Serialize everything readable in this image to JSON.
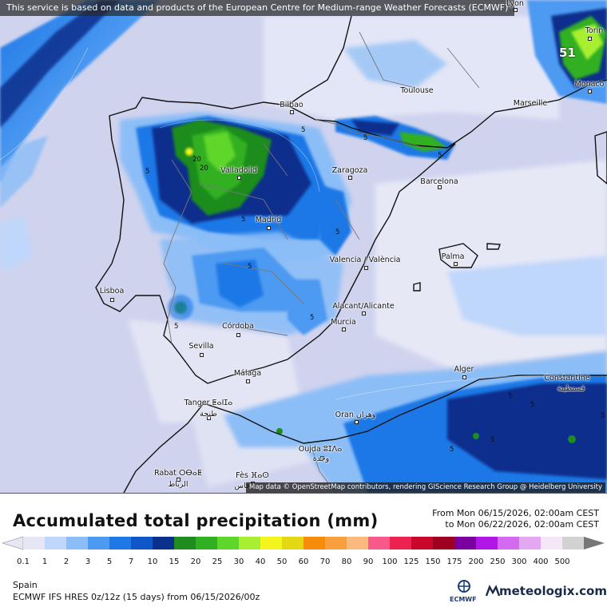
{
  "header": {
    "disclaimer": "This service is based on data and products of the European Centre for Medium-range Weather Forecasts (ECMWF)"
  },
  "map": {
    "attribution": "Map data © OpenStreetMap contributors, rendering GIScience Research Group @ Heidelberg University",
    "max_value_label": "51",
    "cities": [
      {
        "name": "Lyon"
      },
      {
        "name": "Torin"
      },
      {
        "name": "Monaco"
      },
      {
        "name": "Toulouse"
      },
      {
        "name": "Marseille"
      },
      {
        "name": "Bilbao"
      },
      {
        "name": "Zaragoza"
      },
      {
        "name": "Barcelona"
      },
      {
        "name": "Valladolid"
      },
      {
        "name": "Madrid"
      },
      {
        "name": "Valencia / València"
      },
      {
        "name": "Palma"
      },
      {
        "name": "Lisboa"
      },
      {
        "name": "Alacant/Alicante"
      },
      {
        "name": "Murcia"
      },
      {
        "name": "Córdoba"
      },
      {
        "name": "Sevilla"
      },
      {
        "name": "Málaga"
      },
      {
        "name": "Alger"
      },
      {
        "name": "Constantine"
      },
      {
        "name": "قسنطينة"
      },
      {
        "name": "Tanger ⵟⴰⵏⵊⴰ"
      },
      {
        "name": "طنجة"
      },
      {
        "name": "Oran وهران"
      },
      {
        "name": "Oujda ⵓⵊⴷⴰ"
      },
      {
        "name": "وجدة"
      },
      {
        "name": "Rabat ⵔⴱⴰⵟ"
      },
      {
        "name": "الرباط"
      },
      {
        "name": "Fès ⴼⴰⵙ"
      },
      {
        "name": "فاس"
      }
    ],
    "contour_labels": [
      "5",
      "20",
      "20",
      "5",
      "5",
      "5",
      "5",
      "5",
      "5",
      "5",
      "5",
      "5",
      "5",
      "5",
      "5",
      "5"
    ]
  },
  "legend": {
    "title": "Accumulated total precipitation (mm)",
    "period_from": "From Mon 06/15/2026, 02:00am CEST",
    "period_to": "to Mon 06/22/2026, 02:00am CEST",
    "ticks": [
      "0.1",
      "1",
      "2",
      "3",
      "5",
      "7",
      "10",
      "15",
      "20",
      "25",
      "30",
      "40",
      "50",
      "60",
      "70",
      "80",
      "90",
      "100",
      "125",
      "150",
      "175",
      "200",
      "250",
      "300",
      "400",
      "500"
    ],
    "colors": [
      "#e6e6f5",
      "#bfd7fb",
      "#8bbdf7",
      "#4d9af2",
      "#1e78e6",
      "#0f56c8",
      "#0a2f8c",
      "#1e8c1e",
      "#31b021",
      "#5ed62b",
      "#a8ef33",
      "#f5f51e",
      "#e4d814",
      "#f78b0a",
      "#fa9f3e",
      "#fbb97d",
      "#f7598a",
      "#ee2250",
      "#c9072a",
      "#9e0020",
      "#7a009f",
      "#b016e6",
      "#d46af0",
      "#e4a7f2",
      "#f6e7f8",
      "#d2d2d2"
    ]
  },
  "footer": {
    "region": "Spain",
    "model": "ECMWF IFS HRES 0z/12z (15 days) from  06/15/2026/00z",
    "ecmwf_logo_text": "ECMWF",
    "brand": "meteologix.com"
  }
}
